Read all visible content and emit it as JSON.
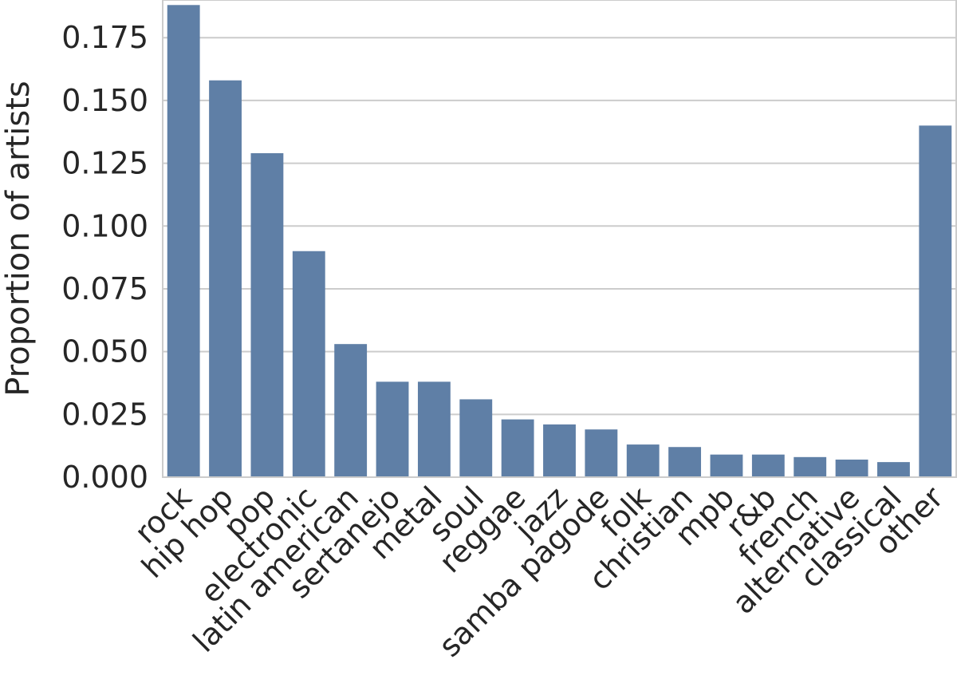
{
  "chart_data": {
    "type": "bar",
    "title": "",
    "xlabel": "",
    "ylabel": "Proportion of artists",
    "ylim": [
      0,
      0.19
    ],
    "yticks": [
      "0.000",
      "0.025",
      "0.050",
      "0.075",
      "0.100",
      "0.125",
      "0.150",
      "0.175"
    ],
    "grid": true,
    "bar_color": "#5f7fa6",
    "categories": [
      "rock",
      "hip hop",
      "pop",
      "electronic",
      "latin american",
      "sertanejo",
      "metal",
      "soul",
      "reggae",
      "jazz",
      "samba pagode",
      "folk",
      "christian",
      "mpb",
      "r&b",
      "french",
      "alternative",
      "classical",
      "other"
    ],
    "values": [
      0.188,
      0.158,
      0.129,
      0.09,
      0.053,
      0.038,
      0.038,
      0.031,
      0.023,
      0.021,
      0.019,
      0.013,
      0.012,
      0.009,
      0.009,
      0.008,
      0.007,
      0.006,
      0.14
    ]
  }
}
